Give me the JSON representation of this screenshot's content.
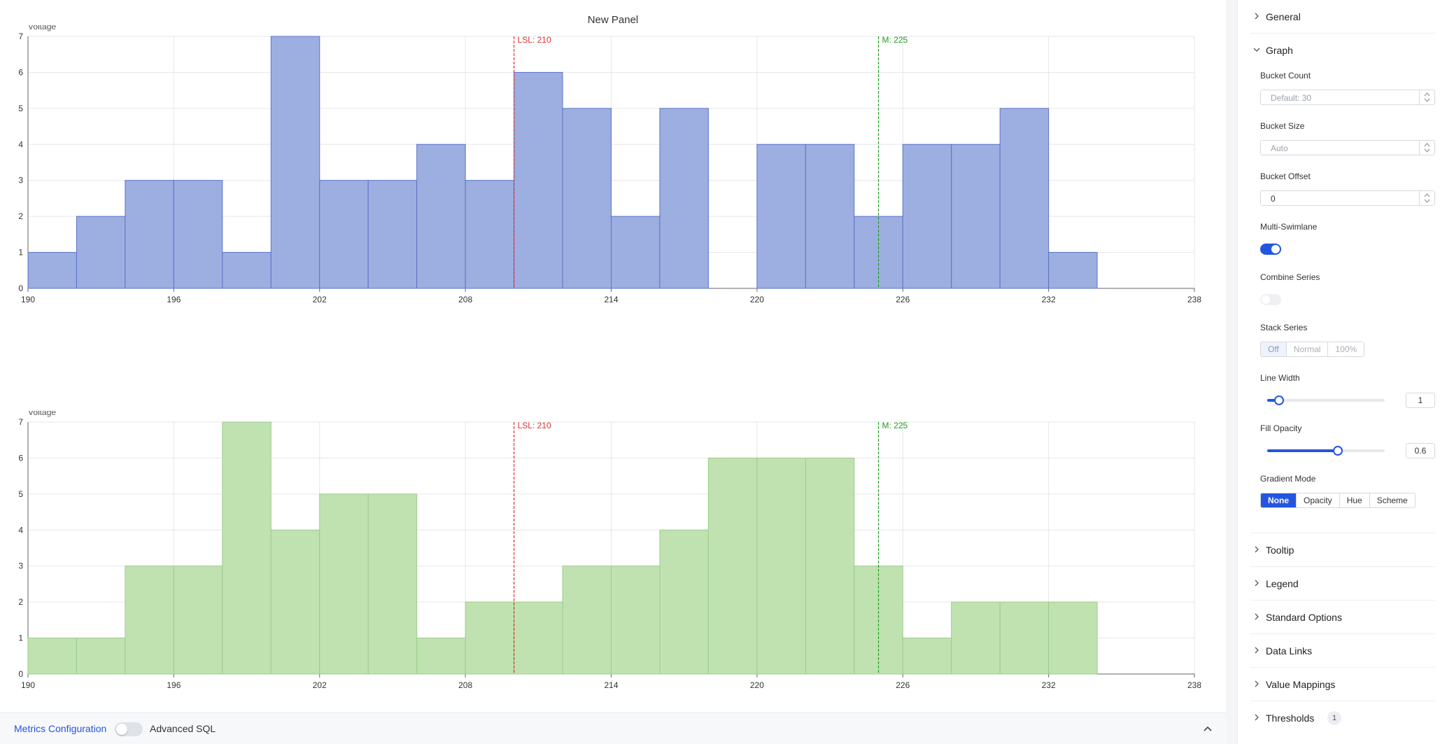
{
  "panel": {
    "title": "New Panel"
  },
  "chart_data": [
    {
      "type": "bar",
      "ylabel": "Voltage",
      "color": "#9daee0",
      "edge": "#5c73c8",
      "bin_start": 190,
      "bin_width": 2,
      "values": [
        1,
        2,
        3,
        3,
        1,
        7,
        3,
        3,
        4,
        3,
        6,
        5,
        2,
        5,
        0,
        4,
        4,
        2,
        4,
        4,
        5,
        1
      ],
      "xlim": [
        190,
        238
      ],
      "xticks": [
        190,
        196,
        202,
        208,
        214,
        220,
        226,
        232,
        238
      ],
      "ylim": [
        0,
        7
      ],
      "yticks": [
        0,
        1,
        2,
        3,
        4,
        5,
        6,
        7
      ],
      "grid": true,
      "markers": [
        {
          "label": "LSL: 210",
          "x": 210,
          "color": "#e03030"
        },
        {
          "label": "M: 225",
          "x": 225,
          "color": "#22a022"
        }
      ]
    },
    {
      "type": "bar",
      "ylabel": "Voltage",
      "color": "#c0e2b0",
      "edge": "#9ccc8c",
      "bin_start": 190,
      "bin_width": 2,
      "values": [
        1,
        1,
        3,
        3,
        7,
        4,
        5,
        5,
        1,
        2,
        2,
        3,
        3,
        4,
        6,
        6,
        6,
        3,
        1,
        2,
        2,
        2
      ],
      "xlim": [
        190,
        238
      ],
      "xticks": [
        190,
        196,
        202,
        208,
        214,
        220,
        226,
        232,
        238
      ],
      "ylim": [
        0,
        7
      ],
      "yticks": [
        0,
        1,
        2,
        3,
        4,
        5,
        6,
        7
      ],
      "grid": true,
      "markers": [
        {
          "label": "LSL: 210",
          "x": 210,
          "color": "#e03030"
        },
        {
          "label": "M: 225",
          "x": 225,
          "color": "#22a022"
        }
      ]
    }
  ],
  "bottom": {
    "metrics_tab": "Metrics Configuration",
    "advanced_sql_label": "Advanced SQL",
    "advanced_sql_on": false,
    "collapse_icon": "chevron-up-icon"
  },
  "options": {
    "general": "General",
    "graph": {
      "title": "Graph",
      "bucket_count": {
        "label": "Bucket Count",
        "placeholder": "Default: 30"
      },
      "bucket_size": {
        "label": "Bucket Size",
        "placeholder": "Auto"
      },
      "bucket_offset": {
        "label": "Bucket Offset",
        "value": "0"
      },
      "multi_swimlane": {
        "label": "Multi-Swimlane",
        "on": true
      },
      "combine_series": {
        "label": "Combine Series",
        "on": false
      },
      "stack_series": {
        "label": "Stack Series",
        "options": [
          "Off",
          "Normal",
          "100%"
        ],
        "selected": "Off"
      },
      "line_width": {
        "label": "Line Width",
        "value": "1",
        "fraction": 0.1
      },
      "fill_opacity": {
        "label": "Fill Opacity",
        "value": "0.6",
        "fraction": 0.6
      },
      "gradient_mode": {
        "label": "Gradient Mode",
        "options": [
          "None",
          "Opacity",
          "Hue",
          "Scheme"
        ],
        "selected": "None"
      }
    },
    "tooltip": "Tooltip",
    "legend": "Legend",
    "standard_options": "Standard Options",
    "data_links": "Data Links",
    "value_mappings": "Value Mappings",
    "thresholds": {
      "label": "Thresholds",
      "count": "1"
    }
  }
}
